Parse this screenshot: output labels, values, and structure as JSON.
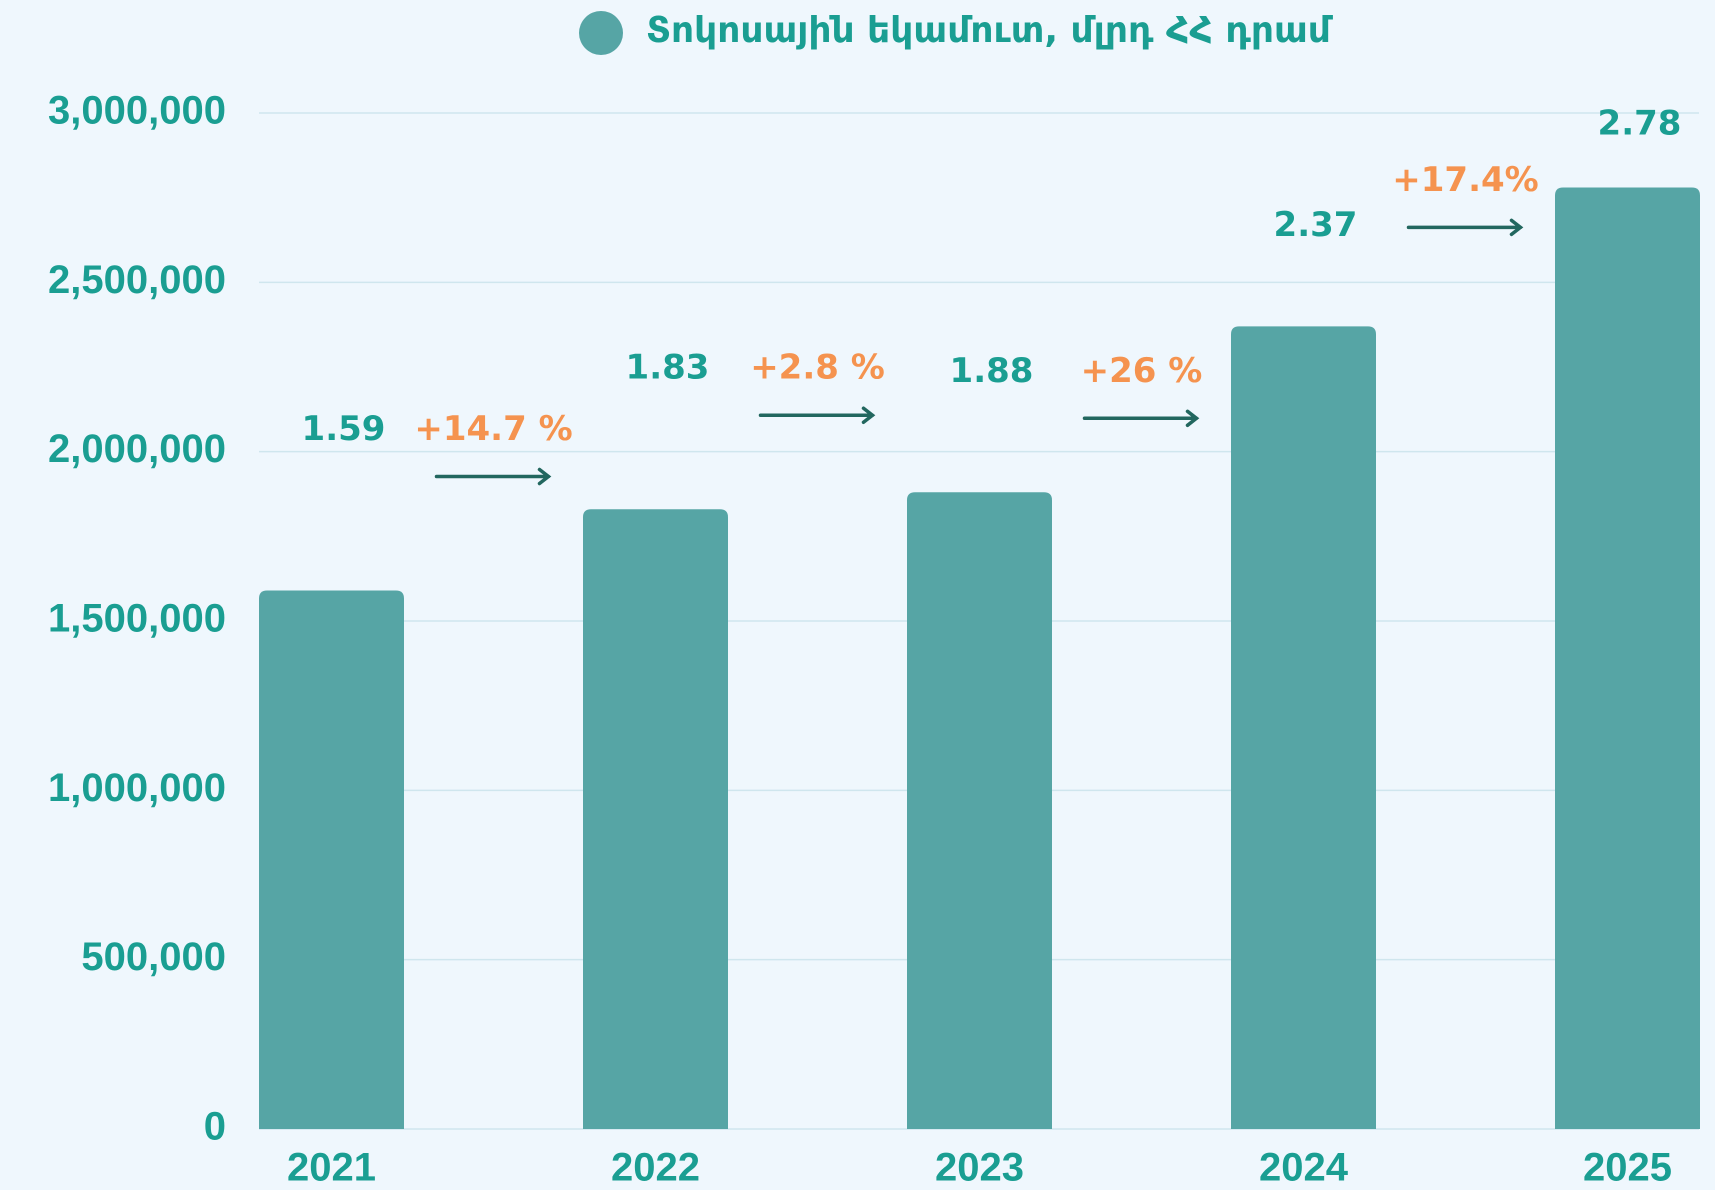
{
  "chart_data": {
    "type": "bar",
    "categories": [
      "2021",
      "2022",
      "2023",
      "2024",
      "2025"
    ],
    "series": [
      {
        "name": "Տոկոսային եկամուտ, մլրդ ՀՀ դրամ",
        "color": "#56a5a5",
        "values": [
          1590000,
          1830000,
          1880000,
          2370000,
          2780000
        ],
        "value_labels": [
          "1.59",
          "1.83",
          "1.88",
          "2.37",
          "2.78"
        ]
      }
    ],
    "annotations": [
      "+14.7 %",
      "+2.8 %",
      "+26 %",
      "+17.4%"
    ],
    "ylim": [
      0,
      3000000
    ],
    "yticks": [
      0,
      {
        "value": 500000,
        "label": "500,000"
      },
      {
        "value": 1000000,
        "label": "1,000,000"
      },
      {
        "value": 1500000,
        "label": "1,500,000"
      },
      {
        "value": 2000000,
        "label": "2,000,000"
      },
      {
        "value": 2500000,
        "label": "2,500,000"
      },
      {
        "value": 3000000,
        "label": "3,000,000"
      }
    ],
    "grid": true,
    "legend": "top"
  }
}
